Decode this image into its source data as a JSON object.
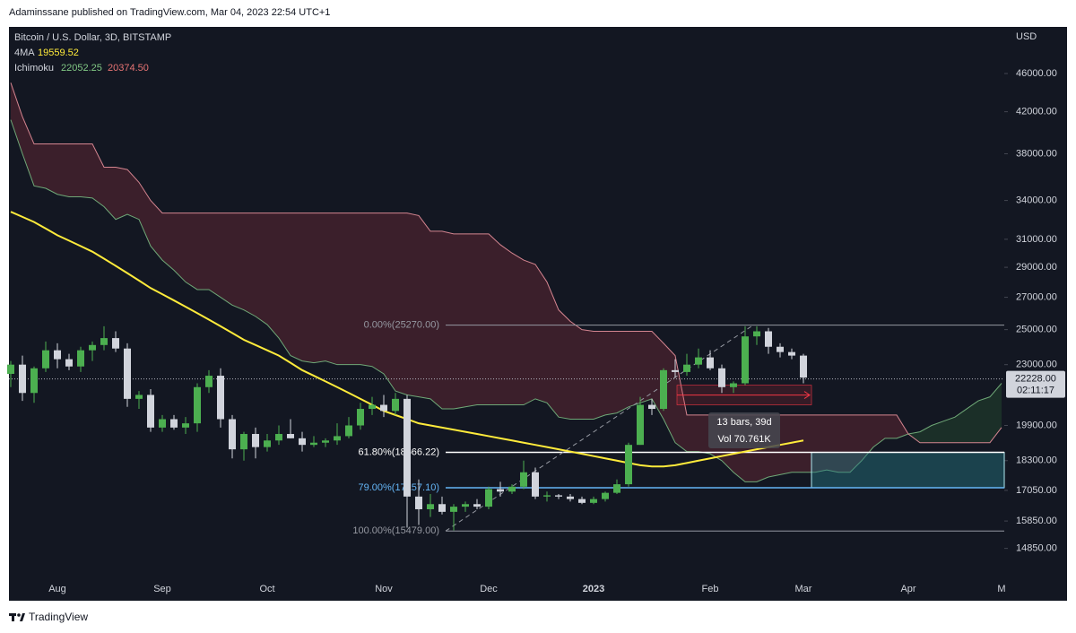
{
  "header": {
    "published": "Adaminssane published on TradingView.com, Mar 04, 2023 22:54 UTC+1",
    "brand": "TradingView"
  },
  "chart_data": {
    "type": "candlestick",
    "title": "Bitcoin / U.S. Dollar, 3D, BITSTAMP",
    "currency": "USD",
    "log_scale": true,
    "grid": false,
    "up_color": "#4caf50",
    "down_color": "#d1d4dc",
    "categories": [
      null,
      null,
      null,
      null,
      "Aug",
      null,
      null,
      null,
      null,
      null,
      null,
      null,
      null,
      "Sep",
      null,
      null,
      null,
      null,
      null,
      null,
      null,
      null,
      "Oct",
      null,
      null,
      null,
      null,
      null,
      null,
      null,
      null,
      null,
      "Nov",
      null,
      null,
      null,
      null,
      null,
      null,
      null,
      null,
      "Dec",
      null,
      null,
      null,
      null,
      null,
      null,
      null,
      null,
      "2023",
      null,
      null,
      null,
      null,
      null,
      null,
      null,
      null,
      null,
      "Feb",
      null,
      null,
      null,
      null,
      null,
      null,
      null,
      "Mar",
      null,
      null,
      null,
      null,
      null,
      null,
      null,
      null,
      "Apr",
      null,
      null,
      null,
      null,
      null,
      null,
      null,
      "M"
    ],
    "open": [
      22500,
      23000,
      21500,
      22800,
      23800,
      23300,
      22900,
      23800,
      24100,
      24500,
      23900,
      21200,
      21400,
      19800,
      20200,
      19800,
      20000,
      21800,
      22400,
      20200,
      18800,
      19500,
      18900,
      19200,
      19500,
      19300,
      19000,
      19100,
      19200,
      19400,
      19900,
      20700,
      20900,
      20600,
      21200,
      16800,
      16300,
      16500,
      16200,
      16400,
      16500,
      16400,
      17100,
      17000,
      17200,
      17800,
      16800,
      16850,
      16800,
      16700,
      16550,
      16700,
      16950,
      17300,
      19000,
      20900,
      20700,
      22700,
      22600,
      23000,
      23400,
      22800,
      21800,
      22000,
      24600,
      24900,
      24000,
      23700,
      23500,
      null,
      null,
      null,
      null,
      null,
      null,
      null,
      null,
      null,
      null,
      null,
      null,
      null,
      null,
      null,
      null,
      null
    ],
    "high": [
      23200,
      23500,
      22900,
      24300,
      24200,
      23600,
      24000,
      24300,
      25200,
      24900,
      24200,
      21600,
      21700,
      20400,
      20400,
      20300,
      22000,
      22700,
      22800,
      20400,
      19600,
      19800,
      19500,
      19900,
      20200,
      19600,
      19400,
      19300,
      20000,
      20300,
      21000,
      21300,
      21400,
      21500,
      21400,
      17500,
      16900,
      16800,
      16500,
      16600,
      16700,
      17200,
      17400,
      17300,
      18300,
      18000,
      17000,
      16900,
      16900,
      16800,
      16800,
      17000,
      17500,
      19100,
      21300,
      21200,
      22800,
      23300,
      23600,
      23900,
      23800,
      23000,
      22100,
      25200,
      25200,
      25100,
      24200,
      23900,
      23600,
      null,
      null,
      null,
      null,
      null,
      null,
      null,
      null,
      null,
      null,
      null,
      null,
      null,
      null,
      null,
      null,
      null
    ],
    "low": [
      21800,
      21100,
      21000,
      22600,
      22800,
      22700,
      22600,
      23200,
      23800,
      23700,
      20800,
      20700,
      19600,
      19600,
      19700,
      19500,
      19600,
      21500,
      19800,
      18400,
      18300,
      18400,
      18700,
      19000,
      19300,
      18700,
      18900,
      18900,
      19000,
      19300,
      19700,
      20400,
      20300,
      20400,
      15600,
      15700,
      16000,
      16100,
      15500,
      16200,
      16300,
      16300,
      16800,
      16900,
      17100,
      16700,
      16600,
      16700,
      16600,
      16500,
      16500,
      16600,
      16900,
      17200,
      19000,
      20400,
      20600,
      22300,
      22400,
      22800,
      22700,
      21500,
      21500,
      21900,
      24100,
      23600,
      23400,
      23300,
      22000,
      null,
      null,
      null,
      null,
      null,
      null,
      null,
      null,
      null,
      null,
      null,
      null,
      null,
      null,
      null,
      null,
      null
    ],
    "close": [
      23000,
      21500,
      22800,
      23800,
      23300,
      22900,
      23800,
      24100,
      24500,
      23900,
      21200,
      21400,
      19800,
      20200,
      19800,
      20000,
      21800,
      22400,
      20200,
      18800,
      19500,
      18900,
      19200,
      19500,
      19300,
      19000,
      19100,
      19200,
      19400,
      19900,
      20700,
      20900,
      20600,
      21200,
      16800,
      16300,
      16500,
      16200,
      16400,
      16500,
      16400,
      17100,
      17000,
      17200,
      17800,
      16800,
      16850,
      16800,
      16700,
      16550,
      16700,
      16950,
      17300,
      19000,
      20900,
      20700,
      22700,
      22600,
      23000,
      23400,
      22800,
      21800,
      22000,
      24600,
      24900,
      24000,
      23700,
      23500,
      22300,
      null,
      null,
      null,
      null,
      null,
      null,
      null,
      null,
      null,
      null,
      null,
      null,
      null,
      null,
      null,
      null,
      null
    ],
    "ylim": [
      13110,
      51400
    ],
    "yticks": [
      {
        "value": 46000,
        "label": "46000.00"
      },
      {
        "value": 42000,
        "label": "42000.00"
      },
      {
        "value": 38000,
        "label": "38000.00"
      },
      {
        "value": 34000,
        "label": "34000.00"
      },
      {
        "value": 31000,
        "label": "31000.00"
      },
      {
        "value": 29000,
        "label": "29000.00"
      },
      {
        "value": 27000,
        "label": "27000.00"
      },
      {
        "value": 25000,
        "label": "25000.00"
      },
      {
        "value": 23000,
        "label": "23000.00"
      },
      {
        "value": 19900,
        "label": "19900.00"
      },
      {
        "value": 18300,
        "label": "18300.00"
      },
      {
        "value": 17050,
        "label": "17050.00"
      },
      {
        "value": 15850,
        "label": "15850.00"
      },
      {
        "value": 14850,
        "label": "14850.00"
      }
    ],
    "last_price": {
      "value": 22228,
      "label": "22228.00"
    },
    "countdown": "02:11:17",
    "ma": {
      "name": "4MA",
      "last": 19559.52,
      "color": "#ffeb3b",
      "values": [
        33100,
        32700,
        32300,
        31800,
        31300,
        30900,
        30500,
        30100,
        29600,
        29100,
        28600,
        28100,
        27600,
        27200,
        26800,
        26400,
        26000,
        25600,
        25200,
        24800,
        24400,
        24100,
        23800,
        23500,
        23100,
        22700,
        22400,
        22100,
        21800,
        21500,
        21200,
        20900,
        20600,
        20400,
        20200,
        20000,
        19900,
        19800,
        19700,
        19600,
        19500,
        19400,
        19300,
        19200,
        19100,
        19000,
        18900,
        18800,
        18700,
        18600,
        18500,
        18400,
        18300,
        18200,
        18100,
        18050,
        18050,
        18100,
        18200,
        18300,
        18400,
        18500,
        18600,
        18700,
        18800,
        18900,
        19000,
        19100,
        19200,
        null,
        null,
        null,
        null,
        null,
        null,
        null,
        null,
        null,
        null,
        null,
        null,
        null,
        null,
        null,
        null,
        null
      ]
    },
    "ichimoku": {
      "name": "Ichimoku",
      "span_a_last": 22052.25,
      "span_b_last": {
        "value": 20374.5,
        "label": "20374.50"
      },
      "span_a_color": "#6fa877",
      "span_b_color": "#d48590",
      "span_a": [
        41200,
        38000,
        35200,
        35000,
        34500,
        34300,
        34300,
        34200,
        33500,
        32500,
        32900,
        32500,
        30500,
        29500,
        28800,
        28000,
        27500,
        27500,
        27000,
        26500,
        26200,
        25800,
        25300,
        24500,
        23500,
        23200,
        23100,
        23200,
        23000,
        23000,
        23000,
        22900,
        22500,
        21600,
        21400,
        21300,
        21200,
        20700,
        20700,
        20800,
        20900,
        20900,
        20900,
        20900,
        20900,
        21200,
        21000,
        20300,
        20200,
        20200,
        20200,
        20400,
        20500,
        20800,
        21000,
        21200,
        20200,
        19100,
        18700,
        18700,
        18600,
        18300,
        17800,
        17400,
        17400,
        17600,
        17700,
        17800,
        17800,
        17800,
        17900,
        17800,
        17800,
        18300,
        18900,
        19300,
        19300,
        19500,
        19600,
        19900,
        20100,
        20300,
        20700,
        21100,
        21300,
        22000
      ],
      "span_b": [
        45000,
        41500,
        38900,
        38900,
        38900,
        38900,
        38900,
        38900,
        36800,
        36800,
        36600,
        35500,
        34000,
        33000,
        33000,
        33000,
        33000,
        33000,
        33000,
        33000,
        33000,
        33000,
        33000,
        33000,
        33000,
        33000,
        33000,
        33000,
        33000,
        33000,
        33000,
        33000,
        33000,
        33000,
        33000,
        32800,
        31600,
        31600,
        31400,
        31400,
        31400,
        31400,
        30600,
        30000,
        29500,
        29200,
        28000,
        26200,
        25500,
        25000,
        24900,
        24900,
        24900,
        24900,
        24900,
        24900,
        24200,
        23500,
        20400,
        20400,
        20400,
        20400,
        20400,
        20400,
        20400,
        20400,
        20400,
        20400,
        20400,
        20400,
        20400,
        20400,
        20400,
        20400,
        20400,
        20400,
        20400,
        19500,
        19100,
        19100,
        19100,
        19100,
        19100,
        19100,
        19100,
        19800
      ]
    },
    "fib_levels": [
      {
        "label": "0.00%(25270.00)",
        "value": 25270,
        "color": "#9598a1"
      },
      {
        "label": "61.80%(18666.22)",
        "value": 18666.22,
        "color": "#ffffff"
      },
      {
        "label": "79.00%(17157.10)",
        "value": 17157.1,
        "color": "#64b5f6"
      },
      {
        "label": "100.00%(15479.00)",
        "value": 15479,
        "color": "#9598a1"
      }
    ],
    "measure": {
      "bars_label": "13 bars, 39d",
      "volume_label": "Vol 70.761K"
    }
  }
}
